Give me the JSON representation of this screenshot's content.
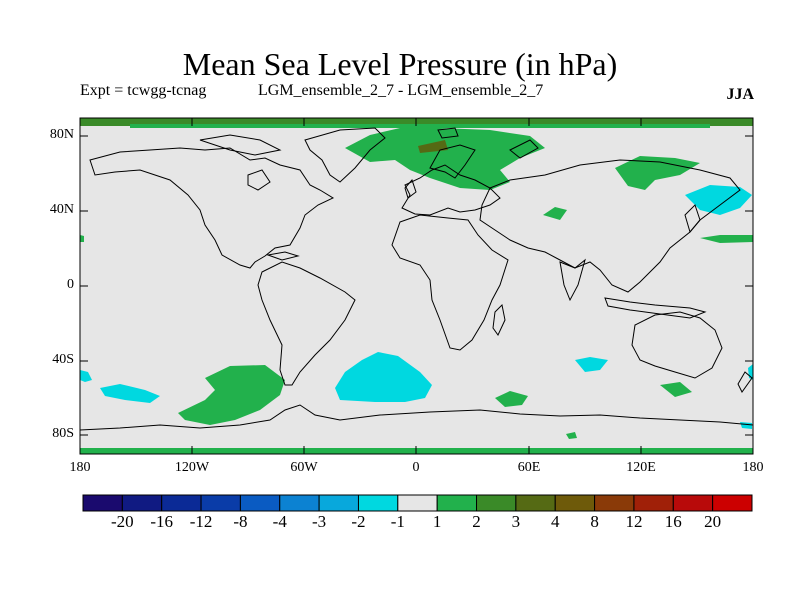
{
  "header": {
    "title": "Mean Sea Level Pressure (in hPa)",
    "expt": "Expt = tcwgg-tcnag",
    "experiment_name": "LGM_ensemble_2_7 - LGM_ensemble_2_7",
    "season": "JJA"
  },
  "axes": {
    "y_ticks": [
      "80N",
      "40N",
      "0",
      "40S",
      "80S"
    ],
    "x_ticks": [
      "180",
      "120W",
      "60W",
      "0",
      "60E",
      "120E",
      "180"
    ]
  },
  "colorbar": {
    "labels": [
      "-20",
      "-16",
      "-12",
      "-8",
      "-4",
      "-3",
      "-2",
      "-1",
      "1",
      "2",
      "3",
      "4",
      "8",
      "12",
      "16",
      "20"
    ],
    "colors": [
      "#1a0a6e",
      "#101a82",
      "#0b2a96",
      "#0a3ca8",
      "#0a5bc2",
      "#0c82d2",
      "#08a8dc",
      "#00d8e0",
      "#e6e6e6",
      "#22b14c",
      "#3a8a28",
      "#556a14",
      "#6e5a0a",
      "#8a3a08",
      "#a02008",
      "#b80a0a",
      "#cc0000"
    ]
  },
  "map": {
    "land_color": "#ffffff",
    "field_background": "#e6e6e6",
    "anomaly_colors": {
      "positive_small": "#22b14c",
      "positive_mid": "#3a8a28",
      "positive_large": "#6e5a0a",
      "negative_small": "#00d8e0"
    },
    "projection": "equirectangular",
    "lon_range": [
      -180,
      180
    ],
    "lat_range": [
      -90,
      90
    ]
  }
}
